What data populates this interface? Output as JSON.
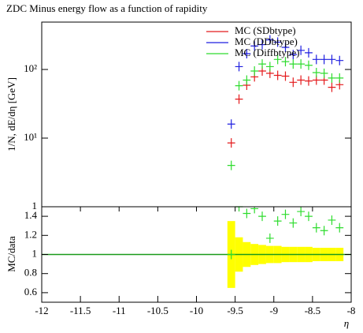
{
  "chart_data": [
    {
      "type": "scatter",
      "title": "ZDC Minus energy flow as a function of rapidity",
      "ylabel": "1/N, dE/dη [GeV]",
      "ylog": true,
      "xlim": [
        -12,
        -8
      ],
      "ylim": [
        1,
        490
      ],
      "yticks": [
        1,
        {
          "value": 10,
          "label": "10¹"
        },
        {
          "value": 100,
          "label": "10²"
        }
      ],
      "legend": "upper right",
      "x": [
        -9.55,
        -9.45,
        -9.35,
        -9.25,
        -9.15,
        -9.05,
        -8.95,
        -8.85,
        -8.75,
        -8.65,
        -8.55,
        -8.45,
        -8.35,
        -8.25,
        -8.15
      ],
      "series": [
        {
          "name": "MC (SDbtype)",
          "color": "#e41a1c",
          "values": [
            8.5,
            37,
            59,
            78,
            95,
            88,
            82,
            80,
            65,
            70,
            68,
            70,
            70,
            55,
            60
          ]
        },
        {
          "name": "MC (DDbtype)",
          "color": "#1f1fe0",
          "values": [
            16,
            110,
            170,
            220,
            230,
            270,
            250,
            210,
            165,
            190,
            175,
            140,
            140,
            140,
            135
          ]
        },
        {
          "name": "MC (Diffbtype)",
          "color": "#2edc2e",
          "values": [
            4,
            58,
            70,
            95,
            120,
            110,
            140,
            130,
            120,
            120,
            115,
            90,
            88,
            75,
            75
          ]
        }
      ]
    },
    {
      "type": "ratio",
      "ylabel": "MC/data",
      "xlabel": "η",
      "xlim": [
        -12,
        -8
      ],
      "ylim": [
        0.5,
        1.5
      ],
      "xticks": [
        -12,
        -11.5,
        -11,
        -10.5,
        -10,
        -9.5,
        -9,
        -8.5,
        -8
      ],
      "yticks": [
        0.6,
        0.8,
        1,
        1.2,
        1.4
      ],
      "reference": 1,
      "reference_color": "#1a9a1a",
      "band_color": "#ffff00",
      "x": [
        -9.55,
        -9.45,
        -9.35,
        -9.25,
        -9.15,
        -9.05,
        -8.95,
        -8.85,
        -8.75,
        -8.65,
        -8.55,
        -8.45,
        -8.35,
        -8.25,
        -8.15
      ],
      "band": [
        0.35,
        0.18,
        0.13,
        0.11,
        0.1,
        0.09,
        0.09,
        0.08,
        0.08,
        0.08,
        0.08,
        0.07,
        0.07,
        0.07,
        0.07
      ],
      "series": [
        {
          "name": "MC (Diffbtype)",
          "color": "#2edc2e",
          "values": [
            1.0,
            1.5,
            1.43,
            1.48,
            1.4,
            1.17,
            1.35,
            1.42,
            1.33,
            1.45,
            1.4,
            1.28,
            1.25,
            1.36,
            1.28
          ]
        }
      ]
    }
  ]
}
